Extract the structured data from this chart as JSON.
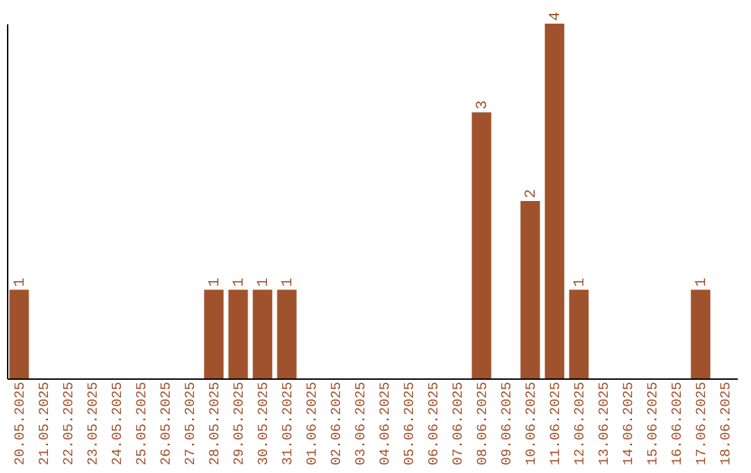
{
  "chart_data": {
    "type": "bar",
    "categories": [
      "20.05.2025",
      "21.05.2025",
      "22.05.2025",
      "23.05.2025",
      "24.05.2025",
      "25.05.2025",
      "26.05.2025",
      "27.05.2025",
      "28.05.2025",
      "29.05.2025",
      "30.05.2025",
      "31.05.2025",
      "01.06.2025",
      "02.06.2025",
      "03.06.2025",
      "04.06.2025",
      "05.06.2025",
      "06.06.2025",
      "07.06.2025",
      "08.06.2025",
      "09.06.2025",
      "10.06.2025",
      "11.06.2025",
      "12.06.2025",
      "13.06.2025",
      "14.06.2025",
      "15.06.2025",
      "16.06.2025",
      "17.06.2025",
      "18.06.2025"
    ],
    "values": [
      1,
      0,
      0,
      0,
      0,
      0,
      0,
      0,
      1,
      1,
      1,
      1,
      0,
      0,
      0,
      0,
      0,
      0,
      0,
      3,
      0,
      2,
      4,
      1,
      0,
      0,
      0,
      0,
      1,
      0
    ],
    "value_labels": [
      "1",
      null,
      null,
      null,
      null,
      null,
      null,
      null,
      "1",
      "1",
      "1",
      "1",
      null,
      null,
      null,
      null,
      null,
      null,
      null,
      "3",
      null,
      "2",
      "4",
      "1",
      null,
      null,
      null,
      null,
      "1",
      null
    ],
    "color": "#a0522d",
    "grid": false,
    "tick_labels": "x"
  }
}
